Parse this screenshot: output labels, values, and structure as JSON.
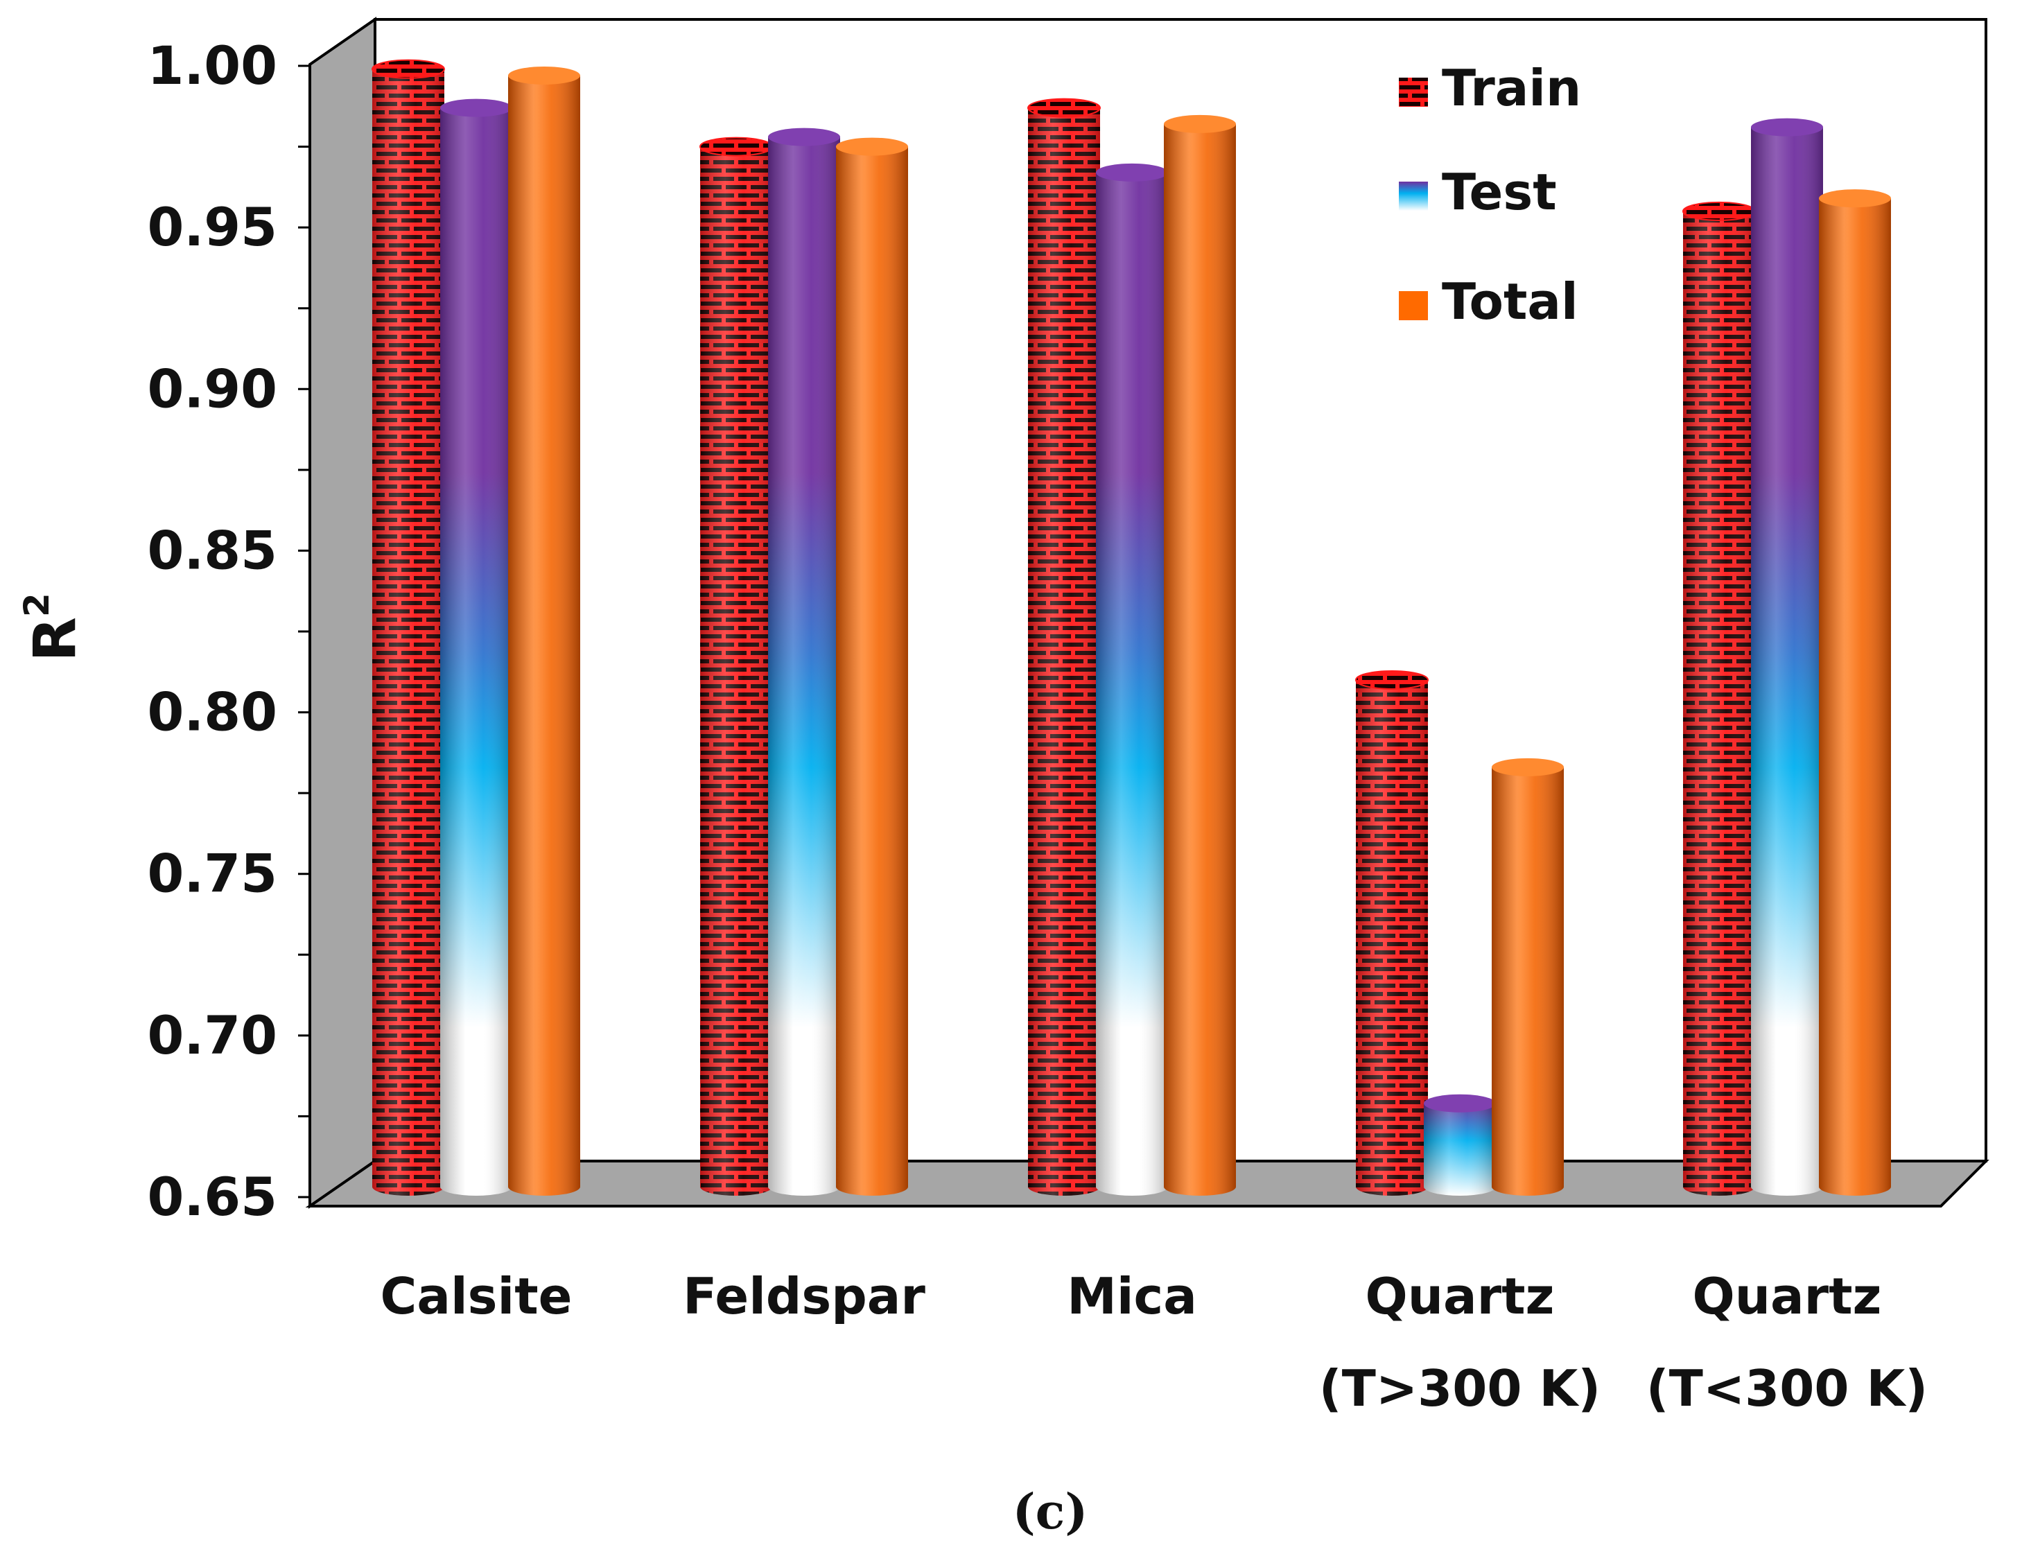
{
  "chart_data": {
    "type": "bar",
    "title": "",
    "xlabel": "",
    "ylabel": "R",
    "ylabel_superscript": "2",
    "ylim": [
      0.65,
      1.0
    ],
    "yticks": [
      "1.00",
      "0.95",
      "0.90",
      "0.85",
      "0.80",
      "0.75",
      "0.70",
      "0.65"
    ],
    "ytick_values": [
      1.0,
      0.95,
      0.9,
      0.85,
      0.8,
      0.75,
      0.7,
      0.65
    ],
    "categories": [
      {
        "line1": "Calsite",
        "line2": ""
      },
      {
        "line1": "Feldspar",
        "line2": ""
      },
      {
        "line1": "Mica",
        "line2": ""
      },
      {
        "line1": "Quartz",
        "line2": "(T>300 K)"
      },
      {
        "line1": "Quartz",
        "line2": "(T<300 K)"
      }
    ],
    "series": [
      {
        "name": "Train",
        "values": [
          0.999,
          0.975,
          0.987,
          0.81,
          0.955
        ]
      },
      {
        "name": "Test",
        "values": [
          0.987,
          0.978,
          0.967,
          0.679,
          0.981
        ]
      },
      {
        "name": "Total",
        "values": [
          0.997,
          0.975,
          0.982,
          0.783,
          0.959
        ]
      }
    ],
    "legend": [
      "Train",
      "Test",
      "Total"
    ],
    "legend_position": "top-right",
    "grid": false,
    "caption": "(c)"
  },
  "colors": {
    "train_base": "#1a0000",
    "train_brick": "#ff1a1a",
    "test_top": "#7030a0",
    "test_mid": "#00b0f0",
    "test_bottom": "#ffffff",
    "total": "#ff6a00",
    "wall": "#ffffff",
    "side_wall": "#a6a6a6",
    "floor": "#a6a6a6"
  }
}
